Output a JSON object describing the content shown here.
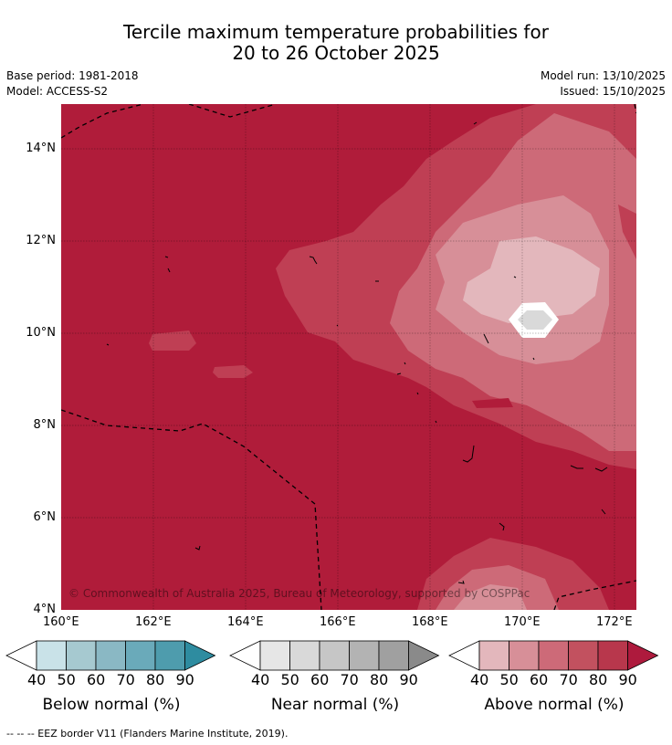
{
  "title": {
    "line1": "Tercile maximum temperature probabilities for",
    "line2": "20 to 26 October 2025"
  },
  "meta": {
    "base_period": "Base period: 1981-2018",
    "model": "Model: ACCESS-S2",
    "model_run": "Model run: 13/10/2025",
    "issued": "Issued: 15/10/2025"
  },
  "map": {
    "lon_ticks": [
      "160°E",
      "162°E",
      "164°E",
      "166°E",
      "168°E",
      "170°E",
      "172°E"
    ],
    "lat_ticks": [
      "14°N",
      "12°N",
      "10°N",
      "8°N",
      "6°N",
      "4°N"
    ],
    "copyright": "© Commonwealth of Australia 2025, Bureau of Meteorology, supported by COSPPac",
    "colors": {
      "above_90": "#b01c3a",
      "above_80": "#bf3f54",
      "above_70": "#cd6a78",
      "above_60": "#d78f98",
      "above_50": "#e3b7bc",
      "near_40": "#d9d9d9"
    }
  },
  "legends": [
    {
      "label": "Below normal (%)",
      "ticks": [
        "40",
        "50",
        "60",
        "70",
        "80",
        "90"
      ],
      "colors": [
        "#c9e2e8",
        "#a6c9d0",
        "#8ab8c4",
        "#6aaaba",
        "#4e9cad",
        "#2e8ca0"
      ]
    },
    {
      "label": "Near normal (%)",
      "ticks": [
        "40",
        "50",
        "60",
        "70",
        "80",
        "90"
      ],
      "colors": [
        "#e6e6e6",
        "#d9d9d9",
        "#c6c6c6",
        "#b3b3b3",
        "#a0a0a0",
        "#8a8a8a"
      ]
    },
    {
      "label": "Above normal (%)",
      "ticks": [
        "40",
        "50",
        "60",
        "70",
        "80",
        "90"
      ],
      "colors": [
        "#e3b7bc",
        "#d78f98",
        "#cd6a78",
        "#c2515f",
        "#b8374c",
        "#ae1a3d"
      ]
    }
  ],
  "footer": "--  --  -- EEZ border V11 (Flanders Marine Institute, 2019)."
}
